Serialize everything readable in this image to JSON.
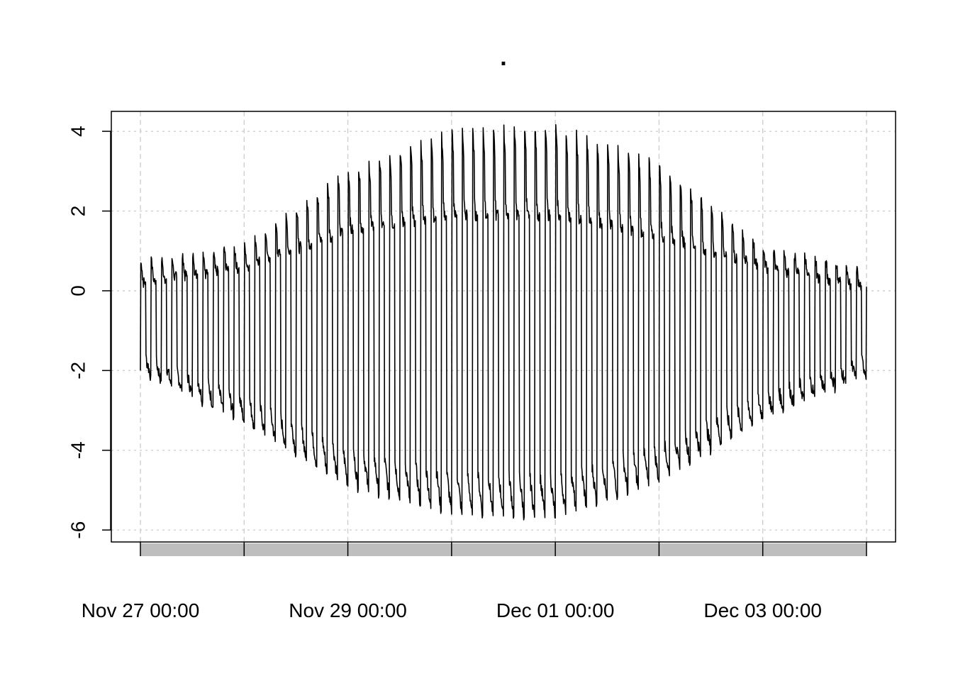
{
  "chart_data": {
    "type": "line",
    "title": ".",
    "xlabel": "",
    "ylabel": "",
    "x_start": "Nov 27 00:00",
    "x_end": "Dec 04 00:00",
    "ylim": [
      -6.3,
      4.5
    ],
    "y_ticks": [
      -6,
      -4,
      -2,
      0,
      2,
      4
    ],
    "y_tick_labels": [
      "-6",
      "-4",
      "-2",
      "0",
      "2",
      "4"
    ],
    "x_ticks": [
      "Nov 27 00:00",
      "Nov 28 00:00",
      "Nov 29 00:00",
      "Nov 30 00:00",
      "Dec 01 00:00",
      "Dec 02 00:00",
      "Dec 03 00:00",
      "Dec 04 00:00"
    ],
    "x_tick_labels": [
      "Nov 27 00:00",
      "",
      "Nov 29 00:00",
      "",
      "Dec 01 00:00",
      "",
      "Dec 03 00:00",
      ""
    ],
    "grid": true,
    "series": [
      {
        "cycles_per_day": 10,
        "envelope_days": [
          "Nov 27",
          "Nov 28",
          "Nov 29",
          "Nov 30",
          "Dec 01",
          "Dec 02",
          "Dec 03",
          "Dec 04"
        ],
        "upper_peak": [
          0.7,
          1.1,
          3.0,
          4.0,
          4.1,
          3.2,
          1.1,
          0.5
        ],
        "middle_level": [
          0.2,
          0.6,
          1.5,
          1.9,
          1.9,
          1.4,
          0.6,
          0.1
        ],
        "lower_trough": [
          -2.0,
          -3.3,
          -4.9,
          -5.6,
          -5.7,
          -4.8,
          -3.2,
          -2.1
        ]
      }
    ],
    "colors": {
      "line": "#000000",
      "grid": "#cccccc",
      "band": "#bebebe"
    }
  }
}
